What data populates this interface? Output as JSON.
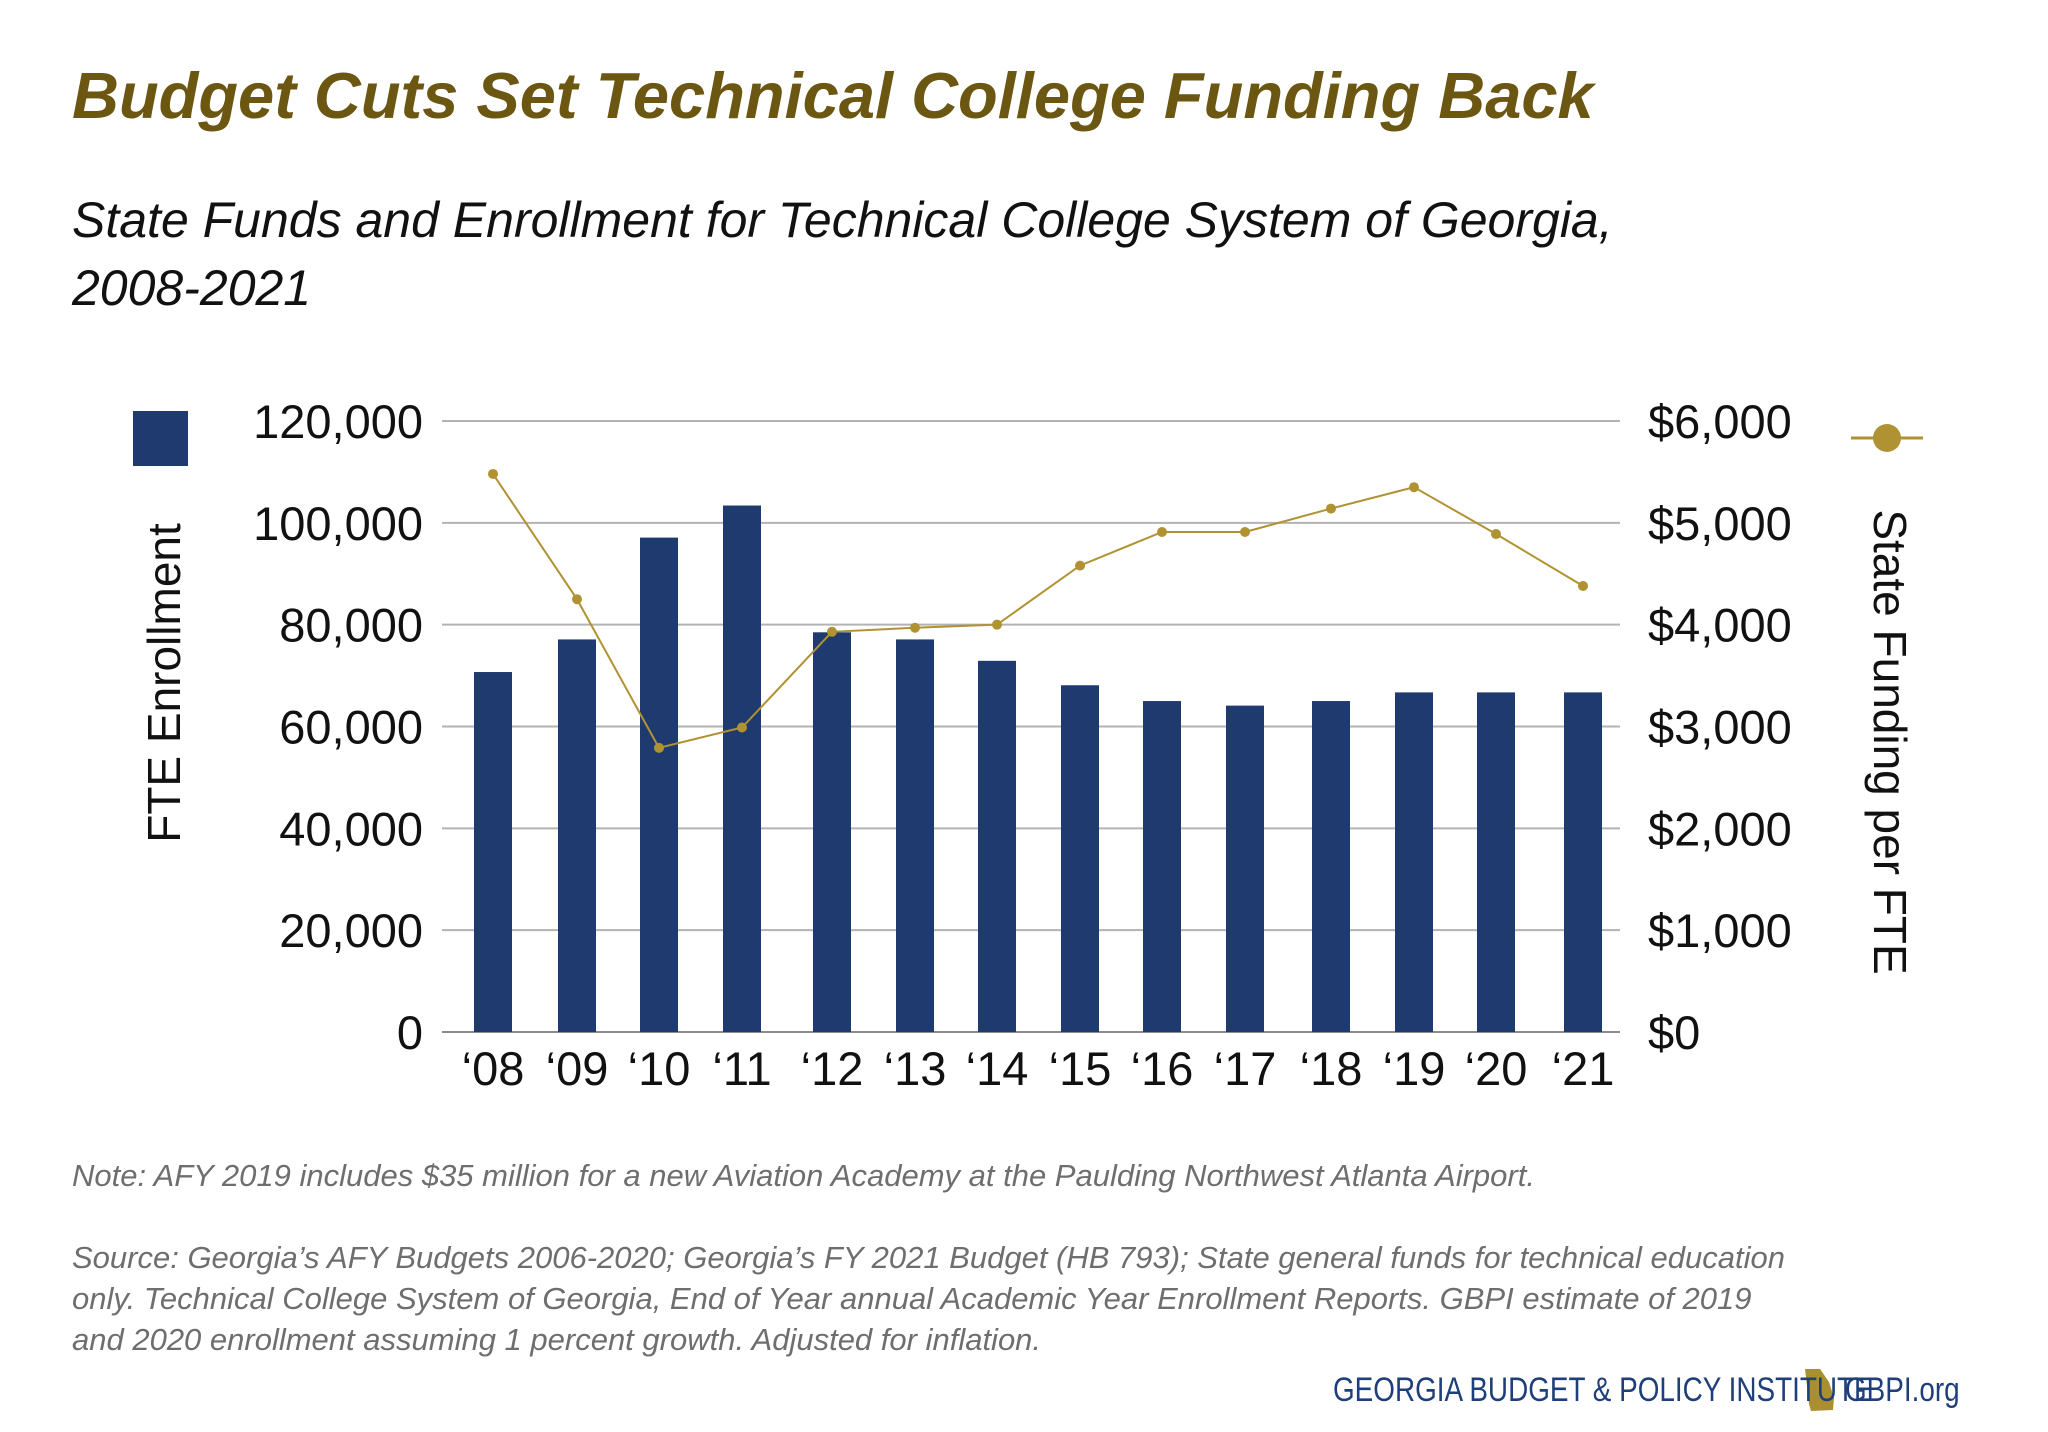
{
  "title": "Budget Cuts Set Technical College Funding Back",
  "subtitle_lines": [
    "State Funds and Enrollment for Technical College System of Georgia,",
    "2008-2021"
  ],
  "note": "Note: AFY 2019 includes $35 million for a new Aviation Academy at the Paulding Northwest Atlanta Airport.",
  "source_lines": [
    "Source: Georgia’s AFY Budgets 2006-2020; Georgia’s FY 2021 Budget (HB 793); State general funds for technical education",
    "only. Technical College System of Georgia, End of Year annual Academic Year Enrollment Reports. GBPI estimate of 2019",
    "and 2020 enrollment assuming 1 percent growth. Adjusted for inflation."
  ],
  "logo": {
    "name": "GEORGIA BUDGET & POLICY INSTITUTE",
    "url": "GBPI.org",
    "icon": "georgia-state-icon"
  },
  "colors": {
    "bars": "#1f3a6e",
    "line": "#b09232",
    "title": "#6b5612",
    "grid": "#b3b3b3"
  },
  "chart_data": {
    "type": "bar+line",
    "categories": [
      "‘08",
      "‘09",
      "‘10",
      "‘11",
      "‘12",
      "‘13",
      "‘14",
      "‘15",
      "‘16",
      "‘17",
      "‘18",
      "‘19",
      "‘20",
      "‘21"
    ],
    "series": [
      {
        "name": "FTE Enrollment",
        "type": "bar",
        "axis": "left",
        "values": [
          70700,
          77100,
          97100,
          103400,
          78500,
          77100,
          72900,
          68100,
          65000,
          64100,
          65000,
          66700,
          66700,
          66700
        ]
      },
      {
        "name": "State Funding per FTE",
        "type": "line",
        "axis": "right",
        "values": [
          5480,
          4250,
          2790,
          2990,
          3930,
          3970,
          4000,
          4580,
          4910,
          4910,
          5140,
          5350,
          4890,
          4380
        ]
      }
    ],
    "ylabel_left": "FTE Enrollment",
    "ylabel_right": "State Funding per FTE",
    "ylim_left": [
      0,
      120000
    ],
    "ylim_right": [
      0,
      6000
    ],
    "yticks_left": [
      "0",
      "20,000",
      "40,000",
      "60,000",
      "80,000",
      "100,000",
      "120,000"
    ],
    "yticks_right": [
      "$0",
      "$1,000",
      "$2,000",
      "$3,000",
      "$4,000",
      "$5,000",
      "$6,000"
    ],
    "grid": true,
    "legend": "top, flanking axes"
  }
}
